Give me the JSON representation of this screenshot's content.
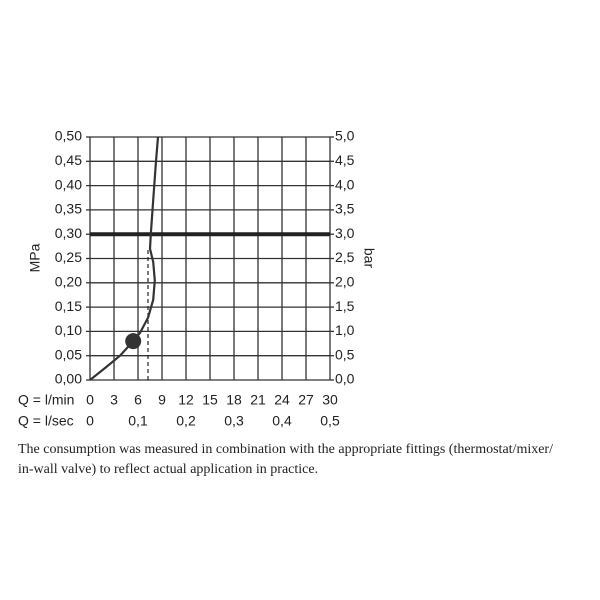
{
  "chart_data": {
    "type": "line",
    "y_label": "MPa",
    "y2_label": "bar",
    "x_row_label": "Q = l/min",
    "x2_row_label": "Q = l/sec",
    "x": [
      0,
      1.9,
      3.75,
      5.4,
      6.25,
      7.25,
      7.9,
      8.1,
      7.9,
      7.5,
      7.6,
      7.9,
      8.25,
      8.5
    ],
    "values": [
      0,
      0.025,
      0.05,
      0.08,
      0.097,
      0.128,
      0.165,
      0.205,
      0.243,
      0.27,
      0.3,
      0.37,
      0.45,
      0.5
    ],
    "color": "#333333",
    "marker": {
      "x": 5.4,
      "y": 0.08
    },
    "reference_line": 0.3,
    "dashed_line": {
      "x": 7.25,
      "y": 0.27
    },
    "xlim": [
      0,
      30
    ],
    "xticks": [
      0,
      3,
      6,
      9,
      12,
      15,
      18,
      21,
      24,
      27,
      30
    ],
    "x2lim": [
      0,
      0.5
    ],
    "x2ticks": [
      0,
      {
        "value": 0.1,
        "label": "0,1"
      },
      {
        "value": 0.2,
        "label": "0,2"
      },
      {
        "value": 0.3,
        "label": "0,3"
      },
      {
        "value": 0.4,
        "label": "0,4"
      },
      {
        "value": 0.5,
        "label": "0,5"
      }
    ],
    "ylim": [
      0,
      0.5
    ],
    "yticks": [
      {
        "value": 0,
        "label": "0,00"
      },
      {
        "value": 0.05,
        "label": "0,05"
      },
      {
        "value": 0.1,
        "label": "0,10"
      },
      {
        "value": 0.15,
        "label": "0,15"
      },
      {
        "value": 0.2,
        "label": "0,20"
      },
      {
        "value": 0.25,
        "label": "0,25"
      },
      {
        "value": 0.3,
        "label": "0,30"
      },
      {
        "value": 0.35,
        "label": "0,35"
      },
      {
        "value": 0.4,
        "label": "0,40"
      },
      {
        "value": 0.45,
        "label": "0,45"
      },
      {
        "value": 0.5,
        "label": "0,50"
      }
    ],
    "y2lim": [
      0,
      5
    ],
    "y2ticks": [
      {
        "value": 0,
        "label": "0,0"
      },
      {
        "value": 0.5,
        "label": "0,5"
      },
      {
        "value": 1,
        "label": "1,0"
      },
      {
        "value": 1.5,
        "label": "1,5"
      },
      {
        "value": 2,
        "label": "2,0"
      },
      {
        "value": 2.5,
        "label": "2,5"
      },
      {
        "value": 3,
        "label": "3,0"
      },
      {
        "value": 3.5,
        "label": "3,5"
      },
      {
        "value": 4,
        "label": "4,0"
      },
      {
        "value": 4.5,
        "label": "4,5"
      },
      {
        "value": 5,
        "label": "5,0"
      }
    ],
    "grid": true,
    "caption": [
      "The consumption was measured in combination with the appropriate fittings (thermostat/mixer/",
      "in-wall valve) to reflect actual application in practice."
    ]
  }
}
